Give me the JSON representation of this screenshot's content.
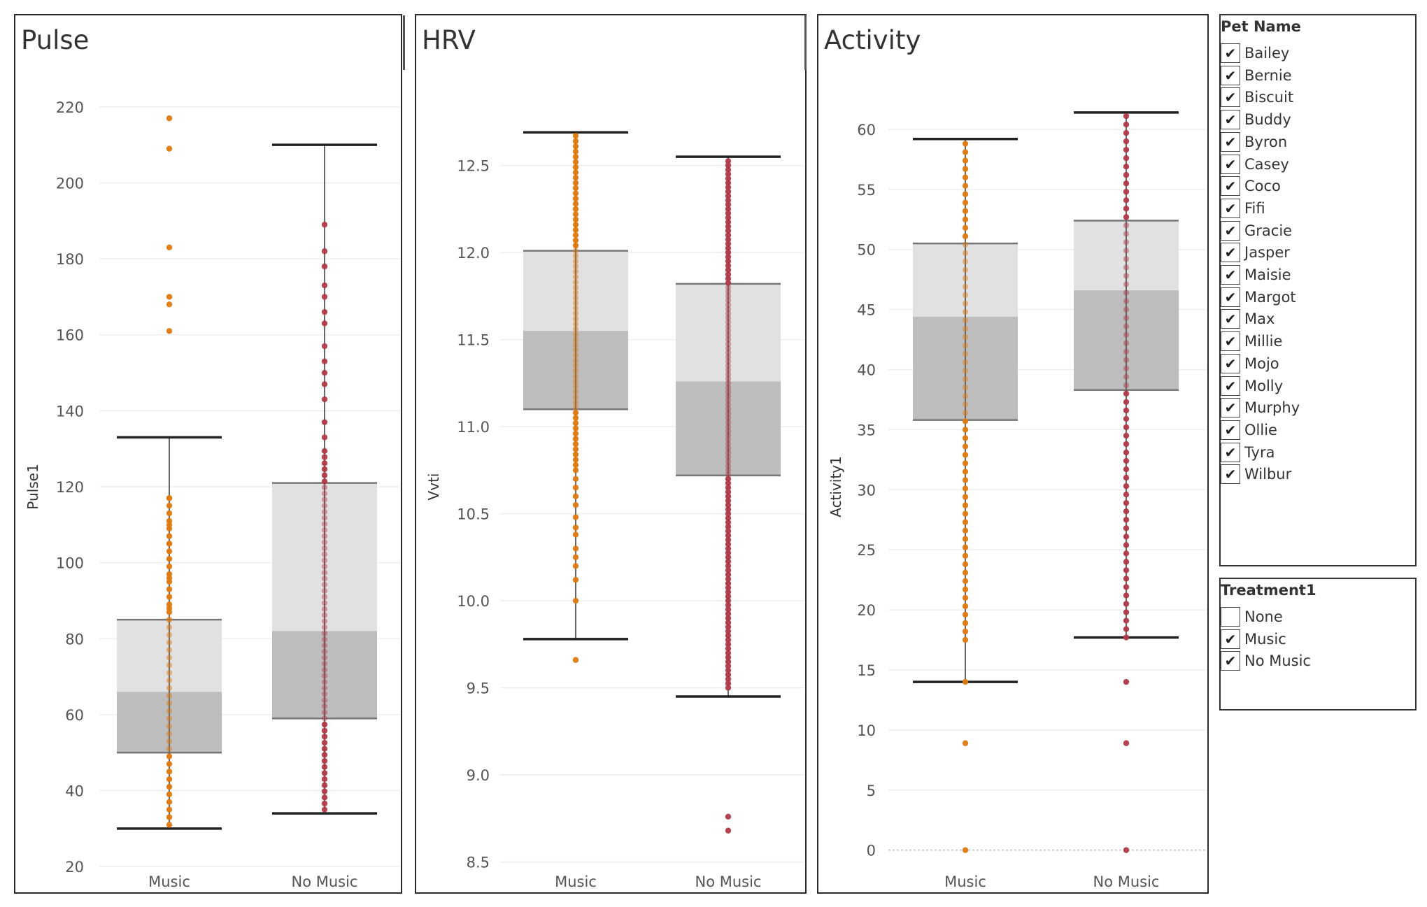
{
  "chart_data": [
    {
      "type": "boxplot",
      "title": "Pulse",
      "ylabel": "Pulse1",
      "categories": [
        "Music",
        "No Music"
      ],
      "ylim": [
        18,
        222
      ],
      "yticks": [
        20,
        40,
        60,
        80,
        100,
        120,
        140,
        160,
        180,
        200,
        220
      ],
      "boxes": [
        {
          "category": "Music",
          "whisker_low": 30,
          "q1": 50,
          "median": 66,
          "q3": 85,
          "whisker_high": 133,
          "outliers": [
            161,
            168,
            170,
            183,
            209,
            217
          ]
        },
        {
          "category": "No Music",
          "whisker_low": 34,
          "q1": 59,
          "median": 82,
          "q3": 121,
          "whisker_high": 210,
          "outliers": []
        }
      ],
      "points": [
        {
          "category": "Music",
          "color": "#E07A10",
          "min": 31,
          "max": 118,
          "step": 2,
          "extra": [
            161,
            168,
            170,
            183,
            209,
            217,
            105,
            110,
            117,
            96,
            88,
            85
          ]
        },
        {
          "category": "No Music",
          "color": "#B03A48",
          "min": 35,
          "max": 130,
          "step": 1.6,
          "extra": [
            133,
            137,
            143,
            147,
            150,
            153,
            157,
            163,
            166,
            170,
            173,
            178,
            182,
            189
          ]
        }
      ]
    },
    {
      "type": "boxplot",
      "title": "HRV",
      "ylabel": "Vvti",
      "categories": [
        "Music",
        "No Music"
      ],
      "ylim": [
        8.43,
        12.88
      ],
      "yticks": [
        8.5,
        9.0,
        9.5,
        10.0,
        10.5,
        11.0,
        11.5,
        12.0,
        12.5
      ],
      "ytick_labels": [
        "8.5",
        "9.0",
        "9.5",
        "10.0",
        "10.5",
        "11.0",
        "11.5",
        "12.0",
        "12.5"
      ],
      "boxes": [
        {
          "category": "Music",
          "whisker_low": 9.78,
          "q1": 11.1,
          "median": 11.55,
          "q3": 12.01,
          "whisker_high": 12.69,
          "outliers": [
            9.66
          ]
        },
        {
          "category": "No Music",
          "whisker_low": 9.45,
          "q1": 10.72,
          "median": 11.26,
          "q3": 11.82,
          "whisker_high": 12.55,
          "outliers": [
            8.68,
            8.76
          ]
        }
      ],
      "points": [
        {
          "category": "Music",
          "color": "#E07A10",
          "min": 10.75,
          "max": 12.69,
          "step": 0.03,
          "extra": [
            10.0,
            10.12,
            10.2,
            10.25,
            10.3,
            10.38,
            10.42,
            10.48,
            10.55,
            10.6,
            10.65,
            10.7,
            9.66
          ]
        },
        {
          "category": "No Music",
          "color": "#B03A48",
          "min": 9.5,
          "max": 12.53,
          "step": 0.025,
          "extra": [
            8.68,
            8.76
          ]
        }
      ]
    },
    {
      "type": "boxplot",
      "title": "Activity",
      "ylabel": "Activity1",
      "categories": [
        "Music",
        "No Music"
      ],
      "ylim": [
        -2,
        62.5
      ],
      "yticks": [
        0,
        5,
        10,
        15,
        20,
        25,
        30,
        35,
        40,
        45,
        50,
        55,
        60
      ],
      "boxes": [
        {
          "category": "Music",
          "whisker_low": 14,
          "q1": 35.8,
          "median": 44.4,
          "q3": 50.5,
          "whisker_high": 59.2,
          "outliers": [
            0,
            8.9
          ]
        },
        {
          "category": "No Music",
          "whisker_low": 17.7,
          "q1": 38.3,
          "median": 46.6,
          "q3": 52.4,
          "whisker_high": 61.4,
          "outliers": [
            0,
            8.9,
            14
          ]
        }
      ],
      "points": [
        {
          "category": "Music",
          "color": "#E07A10",
          "min": 17.5,
          "max": 59.2,
          "step": 0.7,
          "extra": [
            0,
            8.9,
            14
          ]
        },
        {
          "category": "No Music",
          "color": "#B03A48",
          "min": 17.7,
          "max": 61.4,
          "step": 0.7,
          "extra": [
            0,
            8.9,
            14
          ]
        }
      ]
    }
  ],
  "filters": {
    "pet_name": {
      "title": "Pet Name",
      "items": [
        {
          "label": "Bailey",
          "checked": true
        },
        {
          "label": "Bernie",
          "checked": true
        },
        {
          "label": "Biscuit",
          "checked": true
        },
        {
          "label": "Buddy",
          "checked": true
        },
        {
          "label": "Byron",
          "checked": true
        },
        {
          "label": "Casey",
          "checked": true
        },
        {
          "label": "Coco",
          "checked": true
        },
        {
          "label": "Fifi",
          "checked": true
        },
        {
          "label": "Gracie",
          "checked": true
        },
        {
          "label": "Jasper",
          "checked": true
        },
        {
          "label": "Maisie",
          "checked": true
        },
        {
          "label": "Margot",
          "checked": true
        },
        {
          "label": "Max",
          "checked": true
        },
        {
          "label": "Millie",
          "checked": true
        },
        {
          "label": "Mojo",
          "checked": true
        },
        {
          "label": "Molly",
          "checked": true
        },
        {
          "label": "Murphy",
          "checked": true
        },
        {
          "label": "Ollie",
          "checked": true
        },
        {
          "label": "Tyra",
          "checked": true
        },
        {
          "label": "Wilbur",
          "checked": true
        }
      ]
    },
    "treatment": {
      "title": "Treatment1",
      "items": [
        {
          "label": "None",
          "checked": false
        },
        {
          "label": "Music",
          "checked": true
        },
        {
          "label": "No Music",
          "checked": true
        }
      ]
    }
  },
  "icons": {
    "checked": "check-mark-icon"
  },
  "colors": {
    "music": "#E07A10",
    "no_music": "#B03A48",
    "box_upper": "#e1e1e1",
    "box_lower": "#bdbdbd"
  }
}
